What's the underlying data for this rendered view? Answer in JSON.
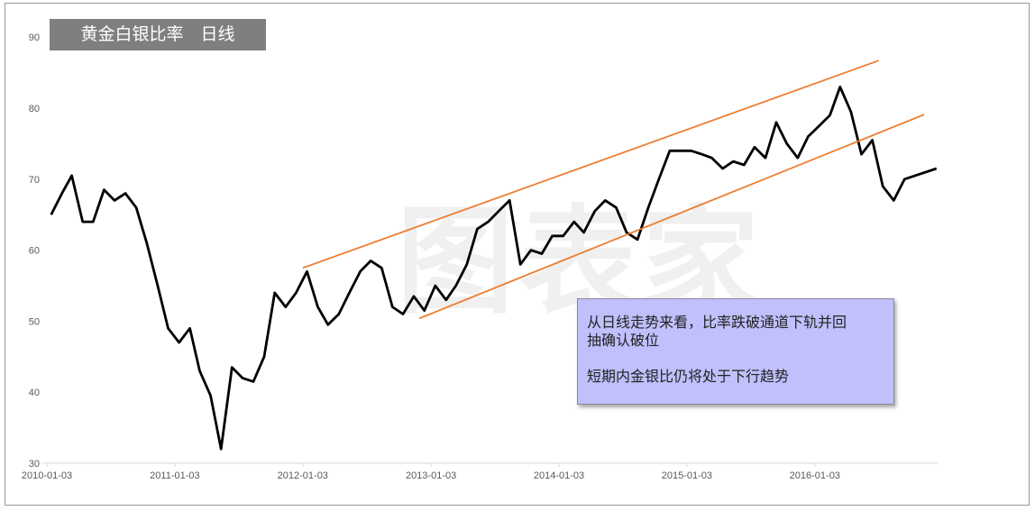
{
  "chart_data": {
    "type": "line",
    "title": "黄金白银比率　日线",
    "ylim": [
      30,
      90
    ],
    "yticks": [
      30,
      40,
      50,
      60,
      70,
      80,
      90
    ],
    "xlim": [
      "2010-01-03",
      "2016-12-20"
    ],
    "xticks": [
      "2010-01-03",
      "2011-01-03",
      "2012-01-03",
      "2013-01-03",
      "2014-01-03",
      "2015-01-03",
      "2016-01-03"
    ],
    "grid": false,
    "series": [
      {
        "color": "#000000",
        "x": [
          "2010-01",
          "2010-02",
          "2010-03",
          "2010-04",
          "2010-05",
          "2010-06",
          "2010-07",
          "2010-08",
          "2010-09",
          "2010-10",
          "2010-11",
          "2010-12",
          "2011-01",
          "2011-02",
          "2011-03",
          "2011-04",
          "2011-05",
          "2011-06",
          "2011-07",
          "2011-08",
          "2011-09",
          "2011-10",
          "2011-11",
          "2011-12",
          "2012-01",
          "2012-02",
          "2012-03",
          "2012-04",
          "2012-05",
          "2012-06",
          "2012-07",
          "2012-08",
          "2012-09",
          "2012-10",
          "2012-11",
          "2012-12",
          "2013-01",
          "2013-02",
          "2013-03",
          "2013-04",
          "2013-05",
          "2013-06",
          "2013-07",
          "2013-08",
          "2013-09",
          "2013-10",
          "2013-11",
          "2013-12",
          "2014-01",
          "2014-02",
          "2014-03",
          "2014-04",
          "2014-05",
          "2014-06",
          "2014-07",
          "2014-08",
          "2014-09",
          "2014-10",
          "2014-11",
          "2014-12",
          "2015-01",
          "2015-02",
          "2015-03",
          "2015-04",
          "2015-05",
          "2015-06",
          "2015-07",
          "2015-08",
          "2015-09",
          "2015-10",
          "2015-11",
          "2015-12",
          "2016-01",
          "2016-02",
          "2016-03",
          "2016-04",
          "2016-05",
          "2016-06",
          "2016-07",
          "2016-08",
          "2016-09",
          "2016-10",
          "2016-11",
          "2016-12"
        ],
        "values": [
          65,
          68,
          70.5,
          64,
          64,
          68.5,
          67,
          68,
          66,
          61,
          55,
          49,
          47,
          49,
          43,
          39.5,
          32,
          43.5,
          42,
          41.5,
          45,
          54,
          52,
          54,
          57,
          52,
          49.5,
          51,
          54,
          57,
          58.5,
          57.5,
          52,
          51,
          53.5,
          51.5,
          55,
          53,
          55,
          58,
          63,
          64,
          65.5,
          67,
          58,
          60,
          59.5,
          62,
          62,
          64,
          62.5,
          65.5,
          67,
          66,
          62.5,
          61.5,
          66,
          70,
          74,
          74,
          74,
          73.5,
          73,
          71.5,
          72.5,
          72,
          74.5,
          73,
          78,
          75,
          73,
          76,
          77.5,
          79,
          83,
          79.5,
          73.5,
          75.5,
          69,
          67,
          70,
          70.5,
          71,
          71.5
        ]
      }
    ],
    "trendlines": [
      {
        "color": "#ed7d31",
        "from": [
          "2012-01-03",
          57.5
        ],
        "to": [
          "2016-07-03",
          86.7
        ]
      },
      {
        "color": "#ed7d31",
        "from": [
          "2012-12-01",
          50.4
        ],
        "to": [
          "2016-11-10",
          79.1
        ]
      }
    ],
    "annotation": {
      "lines": [
        "从日线走势来看，比率跌破通道下轨并回",
        "抽确认破位",
        "短期内金银比仍将处于下行趋势"
      ],
      "background": "#c0c0fd"
    }
  },
  "watermark": "图表家"
}
